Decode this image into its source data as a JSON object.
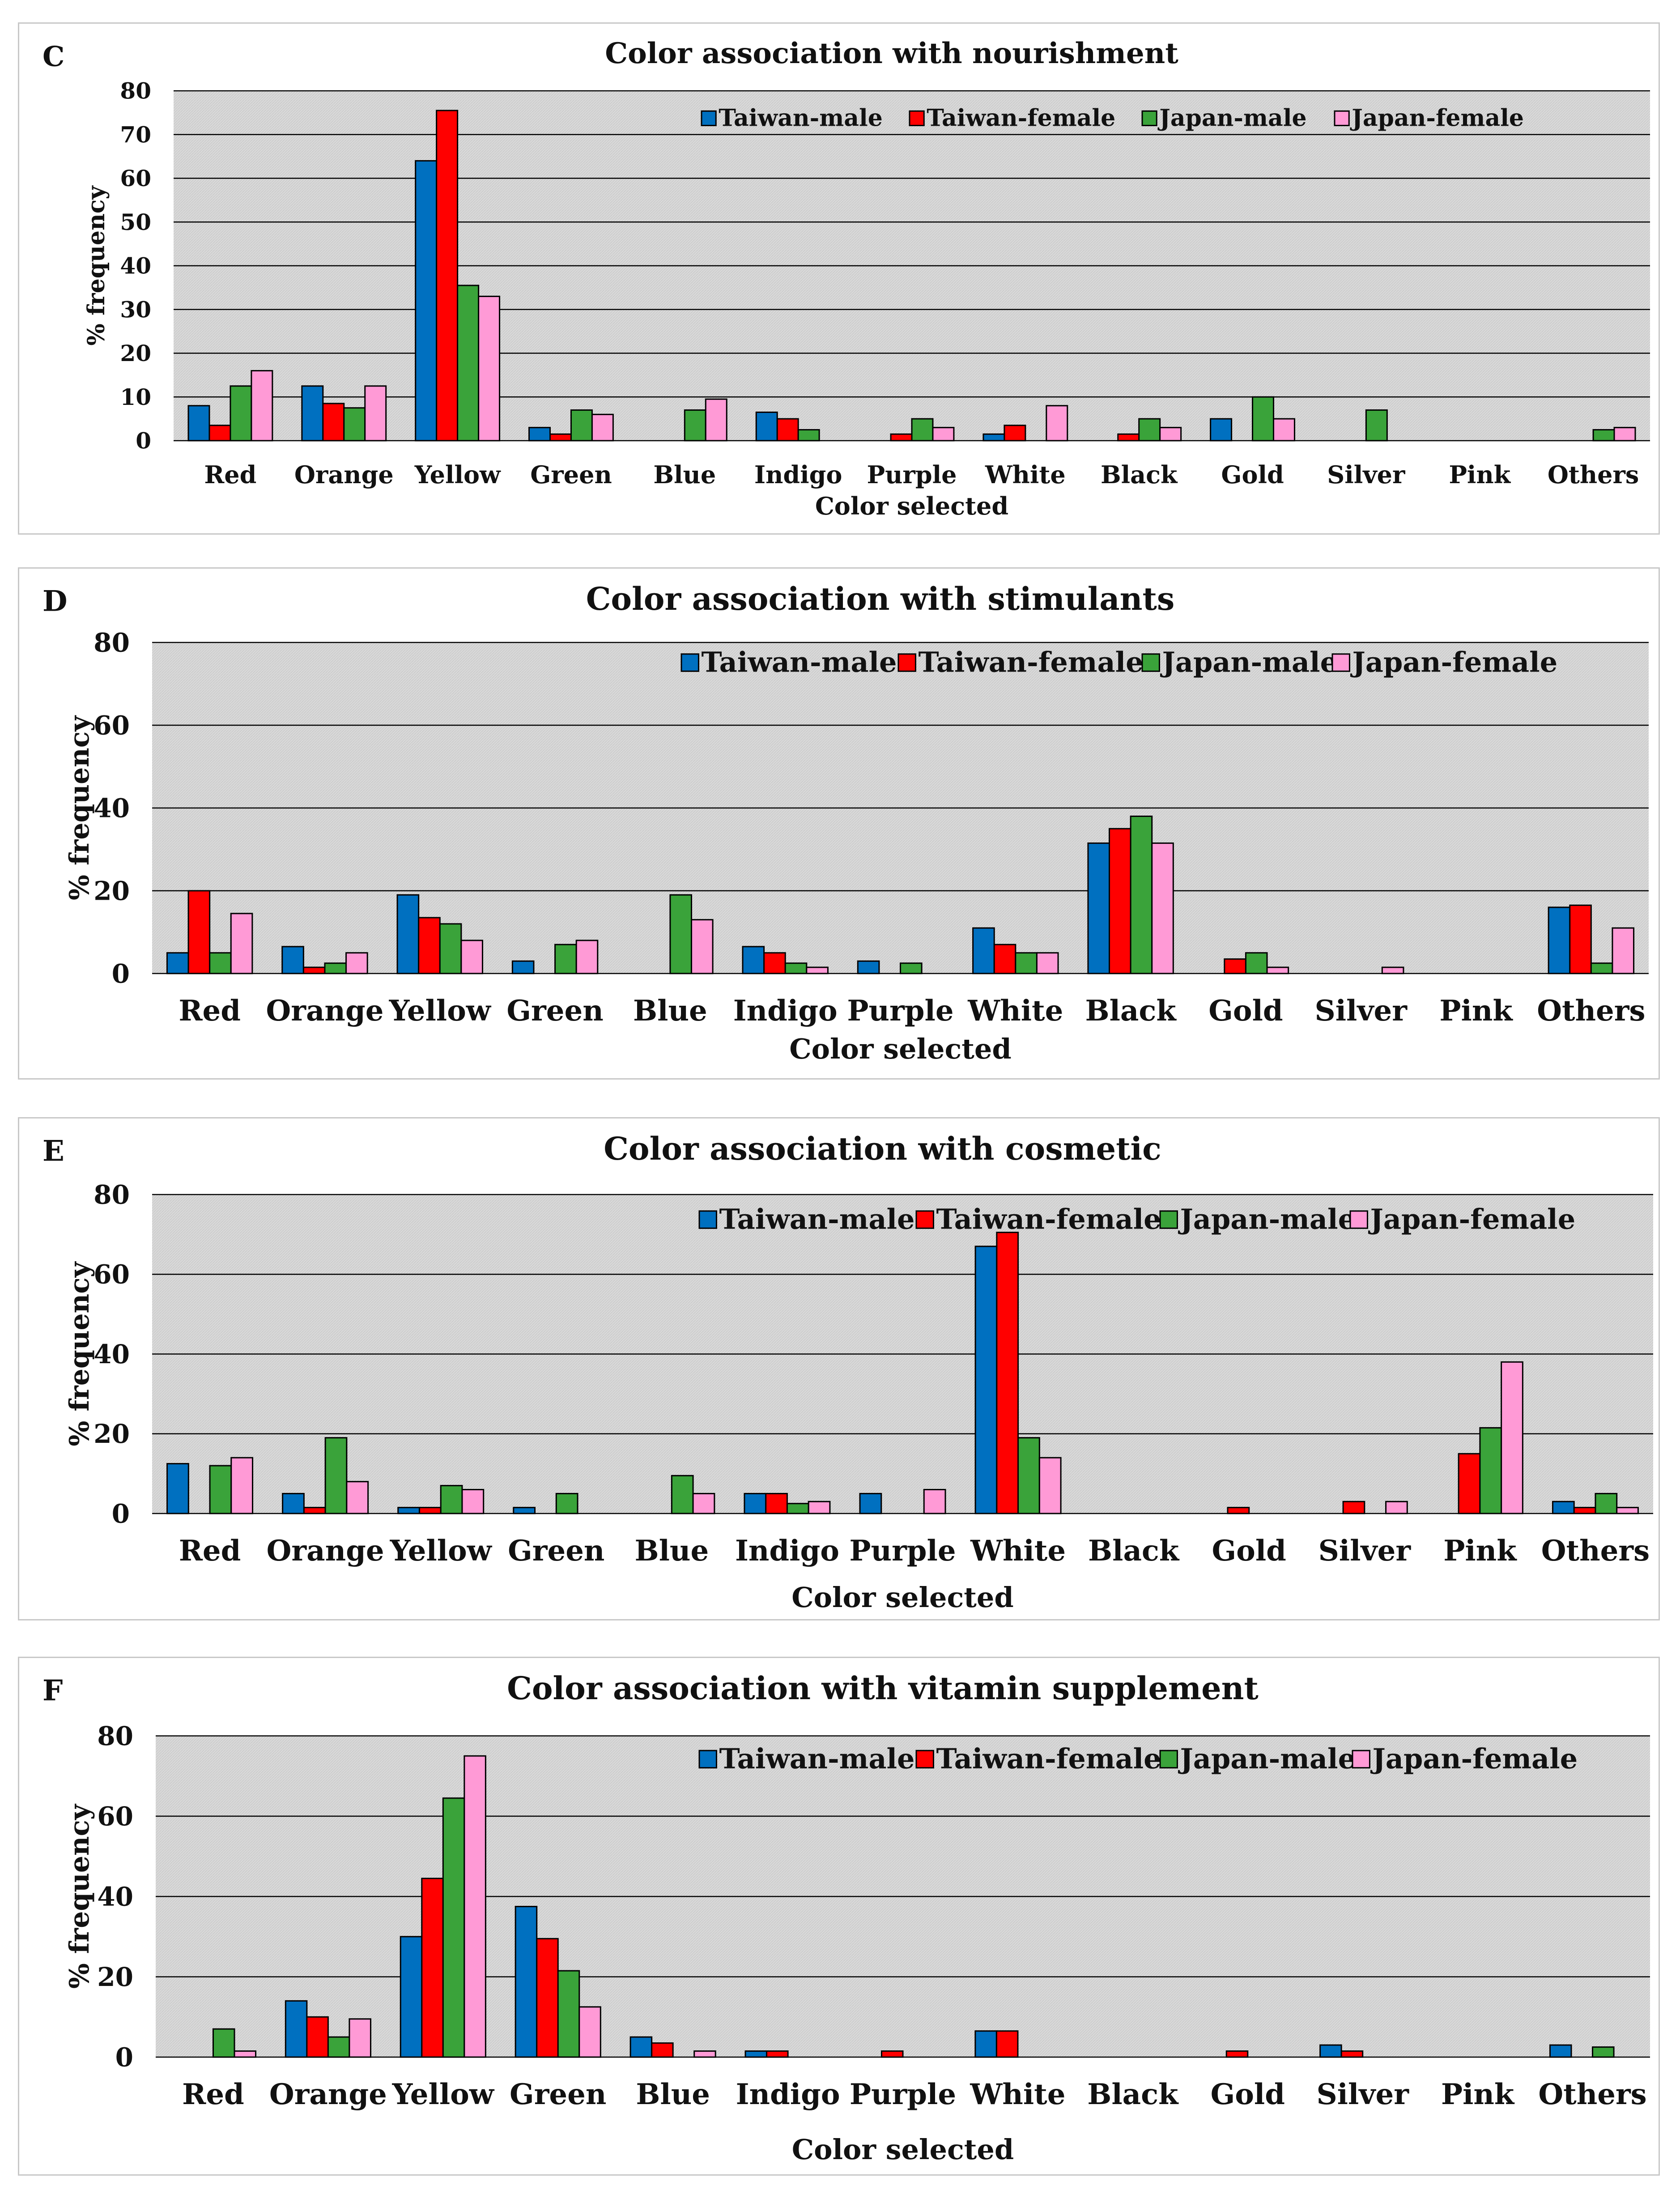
{
  "colors": {
    "Taiwan-male": "#0070c0",
    "Taiwan-female": "#ff0000",
    "Japan-male": "#3aa33a",
    "Japan-female": "#ff9ad6",
    "plot_background": "#d9d9d9",
    "gridline": "#000000"
  },
  "chart_data": [
    {
      "panel": "C",
      "type": "bar",
      "title": "Color association with nourishment",
      "xlabel": "Color selected",
      "ylabel": "% frequency",
      "ylim": [
        0,
        80
      ],
      "yticks": [
        0,
        10,
        20,
        30,
        40,
        50,
        60,
        70,
        80
      ],
      "legend": "top-right",
      "categories": [
        "Red",
        "Orange",
        "Yellow",
        "Green",
        "Blue",
        "Indigo",
        "Purple",
        "White",
        "Black",
        "Gold",
        "Silver",
        "Pink",
        "Others"
      ],
      "series": [
        {
          "name": "Taiwan-male",
          "values": [
            8,
            12.5,
            64,
            3,
            0,
            6.5,
            0,
            1.5,
            0,
            5,
            0,
            0,
            0
          ]
        },
        {
          "name": "Taiwan-female",
          "values": [
            3.5,
            8.5,
            75.5,
            1.5,
            0,
            5,
            1.5,
            3.5,
            1.5,
            0,
            0,
            0,
            0
          ]
        },
        {
          "name": "Japan-male",
          "values": [
            12.5,
            7.5,
            35.5,
            7,
            7,
            2.5,
            5,
            0,
            5,
            10,
            7,
            0,
            2.5
          ]
        },
        {
          "name": "Japan-female",
          "values": [
            16,
            12.5,
            33,
            6,
            9.5,
            0,
            3,
            8,
            3,
            5,
            0,
            0,
            3
          ]
        }
      ]
    },
    {
      "panel": "D",
      "type": "bar",
      "title": "Color association with stimulants",
      "xlabel": "Color selected",
      "ylabel": "% frequency",
      "ylim": [
        0,
        80
      ],
      "yticks": [
        0,
        20,
        40,
        60,
        80
      ],
      "legend": "top-right",
      "categories": [
        "Red",
        "Orange",
        "Yellow",
        "Green",
        "Blue",
        "Indigo",
        "Purple",
        "White",
        "Black",
        "Gold",
        "Silver",
        "Pink",
        "Others"
      ],
      "series": [
        {
          "name": "Taiwan-male",
          "values": [
            5,
            6.5,
            19,
            3,
            0,
            6.5,
            3,
            11,
            31.5,
            0,
            0,
            0,
            16
          ]
        },
        {
          "name": "Taiwan-female",
          "values": [
            20,
            1.5,
            13.5,
            0,
            0,
            5,
            0,
            7,
            35,
            3.5,
            0,
            0,
            16.5
          ]
        },
        {
          "name": "Japan-male",
          "values": [
            5,
            2.5,
            12,
            7,
            19,
            2.5,
            2.5,
            5,
            38,
            5,
            0,
            0,
            2.5
          ]
        },
        {
          "name": "Japan-female",
          "values": [
            14.5,
            5,
            8,
            8,
            13,
            1.5,
            0,
            5,
            31.5,
            1.5,
            1.5,
            0,
            11
          ]
        }
      ]
    },
    {
      "panel": "E",
      "type": "bar",
      "title": "Color association with cosmetic",
      "xlabel": "Color selected",
      "ylabel": "% frequency",
      "ylim": [
        0,
        80
      ],
      "yticks": [
        0,
        20,
        40,
        60,
        80
      ],
      "legend": "top-right",
      "categories": [
        "Red",
        "Orange",
        "Yellow",
        "Green",
        "Blue",
        "Indigo",
        "Purple",
        "White",
        "Black",
        "Gold",
        "Silver",
        "Pink",
        "Others"
      ],
      "series": [
        {
          "name": "Taiwan-male",
          "values": [
            12.5,
            5,
            1.5,
            1.5,
            0,
            5,
            5,
            67,
            0,
            0,
            0,
            0,
            3
          ]
        },
        {
          "name": "Taiwan-female",
          "values": [
            0,
            1.5,
            1.5,
            0,
            0,
            5,
            0,
            70.5,
            0,
            1.5,
            3,
            15,
            1.5
          ]
        },
        {
          "name": "Japan-male",
          "values": [
            12,
            19,
            7,
            5,
            9.5,
            2.5,
            0,
            19,
            0,
            0,
            0,
            21.5,
            5
          ]
        },
        {
          "name": "Japan-female",
          "values": [
            14,
            8,
            6,
            0,
            5,
            3,
            6,
            14,
            0,
            0,
            3,
            38,
            1.5
          ]
        }
      ]
    },
    {
      "panel": "F",
      "type": "bar",
      "title": "Color association with vitamin supplement",
      "xlabel": "Color selected",
      "ylabel": "% frequency",
      "ylim": [
        0,
        80
      ],
      "yticks": [
        0,
        20,
        40,
        60,
        80
      ],
      "legend": "top-right",
      "categories": [
        "Red",
        "Orange",
        "Yellow",
        "Green",
        "Blue",
        "Indigo",
        "Purple",
        "White",
        "Black",
        "Gold",
        "Silver",
        "Pink",
        "Others"
      ],
      "series": [
        {
          "name": "Taiwan-male",
          "values": [
            0,
            14,
            30,
            37.5,
            5,
            1.5,
            0,
            6.5,
            0,
            0,
            3,
            0,
            3
          ]
        },
        {
          "name": "Taiwan-female",
          "values": [
            0,
            10,
            44.5,
            29.5,
            3.5,
            1.5,
            1.5,
            6.5,
            0,
            1.5,
            1.5,
            0,
            0
          ]
        },
        {
          "name": "Japan-male",
          "values": [
            7,
            5,
            64.5,
            21.5,
            0,
            0,
            0,
            0,
            0,
            0,
            0,
            0,
            2.5
          ]
        },
        {
          "name": "Japan-female",
          "values": [
            1.5,
            9.5,
            75,
            12.5,
            1.5,
            0,
            0,
            0,
            0,
            0,
            0,
            0,
            0
          ]
        }
      ]
    }
  ]
}
